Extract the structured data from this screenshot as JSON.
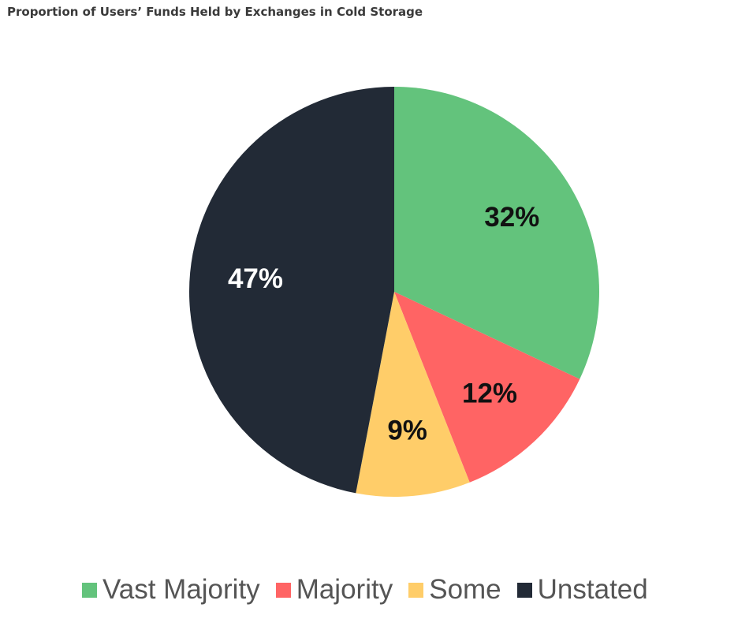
{
  "chart_data": {
    "type": "pie",
    "title": "Proportion of Users’ Funds Held by Exchanges in Cold Storage",
    "legend_position": "bottom",
    "slices": [
      {
        "name": "Vast Majority",
        "value": 32,
        "label": "32%",
        "color": "#63c37c",
        "label_color": "#111111"
      },
      {
        "name": "Majority",
        "value": 12,
        "label": "12%",
        "color": "#ff6464",
        "label_color": "#111111"
      },
      {
        "name": "Some",
        "value": 9,
        "label": "9%",
        "color": "#ffcd69",
        "label_color": "#111111"
      },
      {
        "name": "Unstated",
        "value": 47,
        "label": "47%",
        "color": "#222a36",
        "label_color": "#ffffff"
      }
    ]
  }
}
